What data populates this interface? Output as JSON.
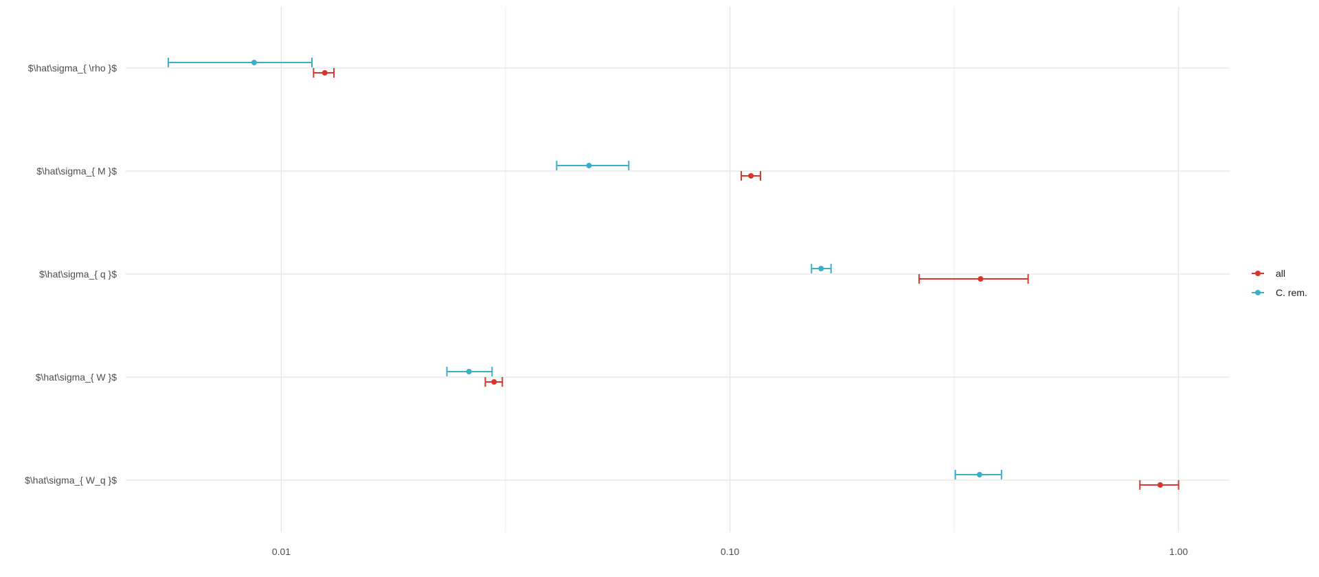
{
  "chart_data": {
    "type": "scatter",
    "orientation": "horizontal-errorbar",
    "x_scale": "log",
    "xlim": [
      0.0045,
      1.3
    ],
    "x_ticks": [
      0.01,
      0.1,
      1.0
    ],
    "x_tick_labels": [
      "0.01",
      "0.10",
      "1.00"
    ],
    "x_minor_ticks": [
      0.0316,
      0.316
    ],
    "grid": true,
    "legend_position": "right",
    "categories": [
      "$\\hat\\sigma_{ \\rho }$",
      "$\\hat\\sigma_{ M }$",
      "$\\hat\\sigma_{ q }$",
      "$\\hat\\sigma_{ W }$",
      "$\\hat\\sigma_{ W_q }$"
    ],
    "series": [
      {
        "name": "all",
        "color": "#d7372a",
        "points": [
          {
            "estimate": 0.0125,
            "lower": 0.0118,
            "upper": 0.0131
          },
          {
            "estimate": 0.1114,
            "lower": 0.106,
            "upper": 0.117
          },
          {
            "estimate": 0.362,
            "lower": 0.264,
            "upper": 0.462
          },
          {
            "estimate": 0.0298,
            "lower": 0.0285,
            "upper": 0.0311
          },
          {
            "estimate": 0.91,
            "lower": 0.82,
            "upper": 1.0
          }
        ]
      },
      {
        "name": "C. rem.",
        "color": "#3aafc9",
        "points": [
          {
            "estimate": 0.0087,
            "lower": 0.0056,
            "upper": 0.0117
          },
          {
            "estimate": 0.0485,
            "lower": 0.0411,
            "upper": 0.0595
          },
          {
            "estimate": 0.1596,
            "lower": 0.152,
            "upper": 0.168
          },
          {
            "estimate": 0.0262,
            "lower": 0.0234,
            "upper": 0.0295
          },
          {
            "estimate": 0.36,
            "lower": 0.318,
            "upper": 0.403
          }
        ]
      }
    ]
  }
}
